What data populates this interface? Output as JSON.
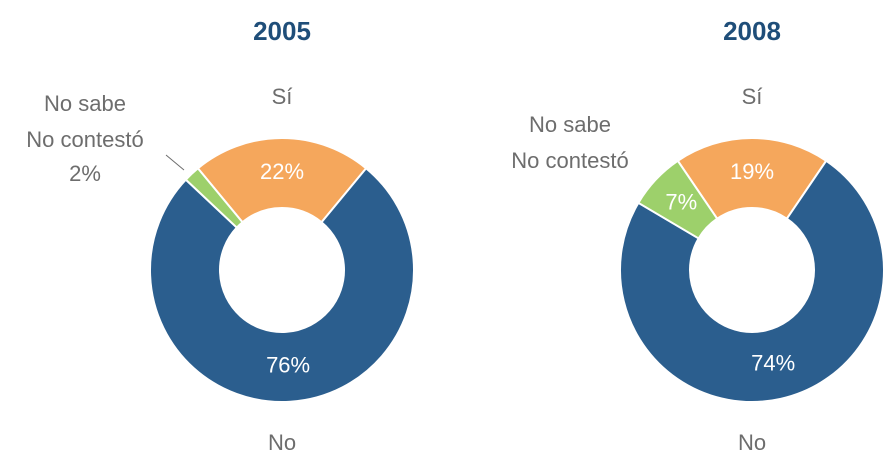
{
  "chart_data": [
    {
      "type": "pie",
      "title": "2005",
      "categories": [
        "Sí",
        "No",
        "No sabe\nNo contestó"
      ],
      "values": [
        22,
        76,
        2
      ],
      "value_labels": [
        "22%",
        "76%",
        "2%"
      ],
      "colors": [
        "#f5a75c",
        "#2b5e8e",
        "#9dd06b"
      ]
    },
    {
      "type": "pie",
      "title": "2008",
      "categories": [
        "Sí",
        "No",
        "No sabe\nNo contestó"
      ],
      "values": [
        19,
        74,
        7
      ],
      "value_labels": [
        "19%",
        "74%",
        "7%"
      ],
      "colors": [
        "#f5a75c",
        "#2b5e8e",
        "#9dd06b"
      ]
    }
  ]
}
